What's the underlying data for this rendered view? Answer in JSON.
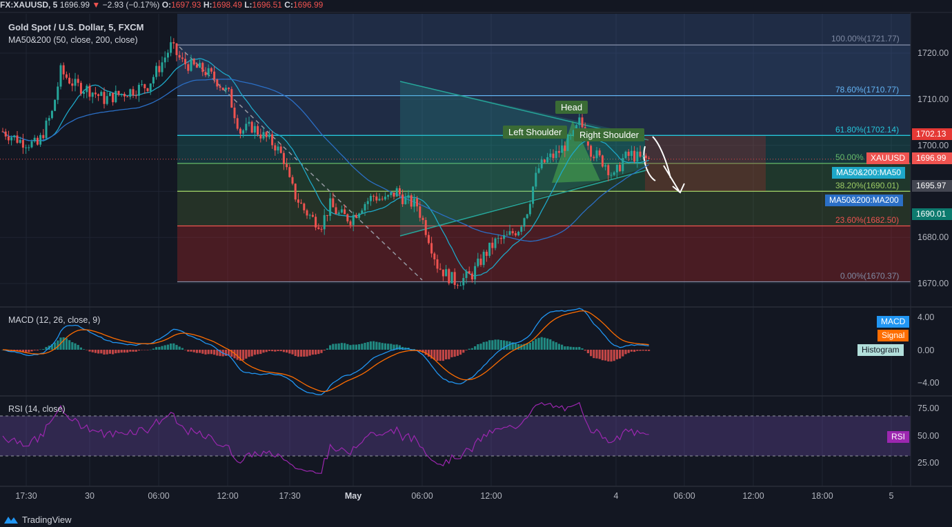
{
  "header": {
    "symbol": "FX:XAUUSD, 5",
    "last": "1696.99",
    "change_arrow": "▼",
    "change": "−2.93 (−0.17%)",
    "o_label": "O:",
    "o": "1697.93",
    "h_label": "H:",
    "h": "1698.49",
    "l_label": "L:",
    "l": "1696.51",
    "c_label": "C:",
    "c": "1696.99"
  },
  "legends": {
    "title": "Gold Spot / U.S. Dollar, 5, FXCM",
    "ma": "MA50&200 (50, close, 200, close)",
    "macd": "MACD (12, 26, close, 9)",
    "rsi": "RSI (14, close)"
  },
  "pattern": {
    "head": "Head",
    "left_shoulder": "Left Shoulder",
    "right_shoulder": "Right Shoulder"
  },
  "badges": {
    "fib_price": "1702.13",
    "xauusd_name": "XAUUSD",
    "xauusd_price": "1696.99",
    "ma50": "MA50&200:MA50",
    "ma50_price": "1695.97",
    "ma200": "MA50&200:MA200",
    "ma200_price": "1690.01",
    "macd": "MACD",
    "signal": "Signal",
    "histogram": "Histogram",
    "rsi": "RSI"
  },
  "branding": {
    "name": "TradingView"
  },
  "colors": {
    "background": "#131722",
    "ma50": "#1ea8c8",
    "ma200": "#2b6fc6",
    "macd": "#2196f3",
    "signal": "#ff6d00",
    "rsi": "#9c27b0",
    "bull": "#26a69a",
    "bear": "#ef5350"
  },
  "chart_data": {
    "type": "candlestick",
    "title": "Gold Spot / U.S. Dollar, 5, FXCM",
    "y_axis": {
      "ylim": [
        1666,
        1726
      ],
      "ticks": [
        1670,
        1680,
        1690,
        1700,
        1710,
        1720
      ],
      "tick_labels": [
        "1670.00",
        "1680.00",
        "1690.00",
        "1700.00",
        "1710.00",
        "1720.00"
      ]
    },
    "x_axis": {
      "ticks": [
        "17:30",
        "30",
        "06:00",
        "12:00",
        "17:30",
        "May",
        "06:00",
        "12:00",
        "4",
        "06:00",
        "12:00",
        "18:00",
        "5"
      ]
    },
    "price_path": [
      [
        0,
        1703
      ],
      [
        6,
        1701
      ],
      [
        12,
        1700
      ],
      [
        17,
        1707
      ],
      [
        20,
        1716
      ],
      [
        25,
        1713
      ],
      [
        30,
        1712
      ],
      [
        35,
        1710
      ],
      [
        40,
        1711
      ],
      [
        45,
        1712
      ],
      [
        50,
        1713
      ],
      [
        55,
        1718
      ],
      [
        58,
        1721.5
      ],
      [
        62,
        1718
      ],
      [
        66,
        1717
      ],
      [
        70,
        1716
      ],
      [
        74,
        1714
      ],
      [
        78,
        1711
      ],
      [
        82,
        1703
      ],
      [
        86,
        1704
      ],
      [
        90,
        1702
      ],
      [
        94,
        1700
      ],
      [
        97,
        1697
      ],
      [
        99,
        1692
      ],
      [
        101,
        1689
      ],
      [
        104,
        1686
      ],
      [
        107,
        1684
      ],
      [
        110,
        1683
      ],
      [
        113,
        1687
      ],
      [
        116,
        1685
      ],
      [
        120,
        1684
      ],
      [
        124,
        1687
      ],
      [
        128,
        1689
      ],
      [
        132,
        1688
      ],
      [
        136,
        1690
      ],
      [
        139,
        1688
      ],
      [
        143,
        1687
      ],
      [
        147,
        1680
      ],
      [
        150,
        1674
      ],
      [
        153,
        1672
      ],
      [
        156,
        1670.5
      ],
      [
        159,
        1671
      ],
      [
        162,
        1672
      ],
      [
        166,
        1676
      ],
      [
        170,
        1679
      ],
      [
        174,
        1680
      ],
      [
        178,
        1682
      ],
      [
        181,
        1686
      ],
      [
        183,
        1691
      ],
      [
        185,
        1695
      ],
      [
        188,
        1697
      ],
      [
        191,
        1698
      ],
      [
        194,
        1700
      ],
      [
        197,
        1702
      ],
      [
        199,
        1705
      ],
      [
        201,
        1703
      ],
      [
        203,
        1699
      ],
      [
        206,
        1697
      ],
      [
        208,
        1696
      ],
      [
        211,
        1693
      ],
      [
        214,
        1697
      ],
      [
        217,
        1698
      ],
      [
        220,
        1697
      ],
      [
        223,
        1696.99
      ]
    ],
    "indicators": {
      "ma50": {
        "name": "MA50",
        "last": 1695.97
      },
      "ma200": {
        "name": "MA200",
        "last": 1690.01
      },
      "macd": {
        "ylim": [
          -5,
          5
        ],
        "ticks": [
          "4.00",
          "0.00",
          "−4.00"
        ]
      },
      "rsi": {
        "ylim": [
          10,
          80
        ],
        "ticks": [
          "75.00",
          "50.00",
          "25.00"
        ],
        "bands": [
          30,
          70
        ]
      }
    },
    "fibonacci": [
      {
        "level": "100.00%",
        "price": 1721.77,
        "label": "100.00%(1721.77)"
      },
      {
        "level": "78.60%",
        "price": 1710.77,
        "label": "78.60%(1710.77)"
      },
      {
        "level": "61.80%",
        "price": 1702.14,
        "label": "61.80%(1702.14)"
      },
      {
        "level": "50.00%",
        "price": 1696.07,
        "label": "50.00%"
      },
      {
        "level": "38.20%",
        "price": 1690.01,
        "label": "38.20%(1690.01)"
      },
      {
        "level": "23.60%",
        "price": 1682.5,
        "label": "23.60%(1682.50)"
      },
      {
        "level": "0.00%",
        "price": 1670.37,
        "label": "0.00%(1670.37)"
      }
    ],
    "annotations": [
      "Head",
      "Left Shoulder",
      "Right Shoulder"
    ]
  }
}
